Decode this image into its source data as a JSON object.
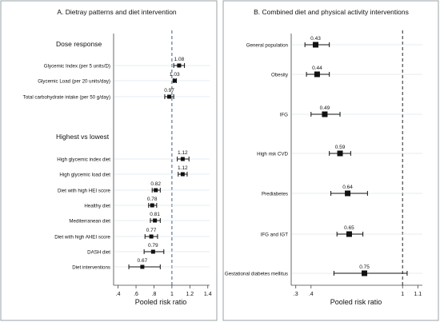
{
  "chart_data": [
    {
      "type": "forest",
      "title": "A. Dietray patterns and diet intervention",
      "xlabel": "Pooled risk ratio",
      "xlim": [
        0.35,
        1.42
      ],
      "xticks": [
        0.4,
        0.6,
        0.8,
        1,
        1.2,
        1.4
      ],
      "xtick_labels": [
        ".4",
        ".6",
        ".8",
        "1",
        "1.2",
        "1.4"
      ],
      "reference_line": 1,
      "headers": [
        "Dose response",
        "Highest vs lowest"
      ],
      "rows": [
        {
          "label": "Glycemic Index (per 5 units/D)",
          "rr": 1.08,
          "lo": 1.02,
          "hi": 1.14,
          "value_label": "1.08"
        },
        {
          "label": "Glycemic Load (per 20 units/day)",
          "rr": 1.03,
          "lo": 1.02,
          "hi": 1.05,
          "value_label": "1.03"
        },
        {
          "label": "Total carbohydrate intake (per 50 g/day)",
          "rr": 0.97,
          "lo": 0.92,
          "hi": 1.02,
          "value_label": "0.97"
        },
        {
          "label": "High glycemic index diet",
          "rr": 1.12,
          "lo": 1.06,
          "hi": 1.19,
          "value_label": "1.12"
        },
        {
          "label": "High glycemic load diet",
          "rr": 1.12,
          "lo": 1.07,
          "hi": 1.17,
          "value_label": "1.12"
        },
        {
          "label": "Diet with high HEI score",
          "rr": 0.82,
          "lo": 0.78,
          "hi": 0.87,
          "value_label": "0.82"
        },
        {
          "label": "Healthy diet",
          "rr": 0.78,
          "lo": 0.74,
          "hi": 0.83,
          "value_label": "0.78"
        },
        {
          "label": "Mediterranean diet",
          "rr": 0.81,
          "lo": 0.76,
          "hi": 0.87,
          "value_label": "0.81"
        },
        {
          "label": "Diet with high AHEI score",
          "rr": 0.77,
          "lo": 0.7,
          "hi": 0.84,
          "value_label": "0.77"
        },
        {
          "label": "DASH diet",
          "rr": 0.79,
          "lo": 0.69,
          "hi": 0.91,
          "value_label": "0.79"
        },
        {
          "label": "Diet interventions",
          "rr": 0.67,
          "lo": 0.52,
          "hi": 0.87,
          "value_label": "0.67"
        }
      ]
    },
    {
      "type": "forest",
      "title": "B. Combined diet and physical activity interventions",
      "xlabel": "Pooled risk ratio",
      "xlim": [
        0.27,
        1.13
      ],
      "xticks": [
        0.3,
        0.4,
        1,
        1.1
      ],
      "xtick_labels": [
        ".3",
        ".4",
        "1",
        "1.1"
      ],
      "reference_line": 1,
      "rows": [
        {
          "label": "General population",
          "rr": 0.43,
          "lo": 0.36,
          "hi": 0.52,
          "value_label": "0.43"
        },
        {
          "label": "Obesity",
          "rr": 0.44,
          "lo": 0.37,
          "hi": 0.52,
          "value_label": "0.44"
        },
        {
          "label": "IFG",
          "rr": 0.49,
          "lo": 0.4,
          "hi": 0.59,
          "value_label": "0.49"
        },
        {
          "label": "High risk CVD",
          "rr": 0.59,
          "lo": 0.52,
          "hi": 0.66,
          "value_label": "0.59"
        },
        {
          "label": "Prediabetes",
          "rr": 0.64,
          "lo": 0.53,
          "hi": 0.77,
          "value_label": "0.64"
        },
        {
          "label": "IFG and IGT",
          "rr": 0.65,
          "lo": 0.57,
          "hi": 0.74,
          "value_label": "0.65"
        },
        {
          "label": "Gestational diabetes mellitus",
          "rr": 0.75,
          "lo": 0.55,
          "hi": 1.03,
          "value_label": "0.75"
        }
      ]
    }
  ],
  "colors": {
    "reference_line_left": "#3a5f8a",
    "reference_line_right": "#222222",
    "gridline": "#dbe7ec",
    "marker": "#111111",
    "panel_border": "#9aa0a6"
  }
}
